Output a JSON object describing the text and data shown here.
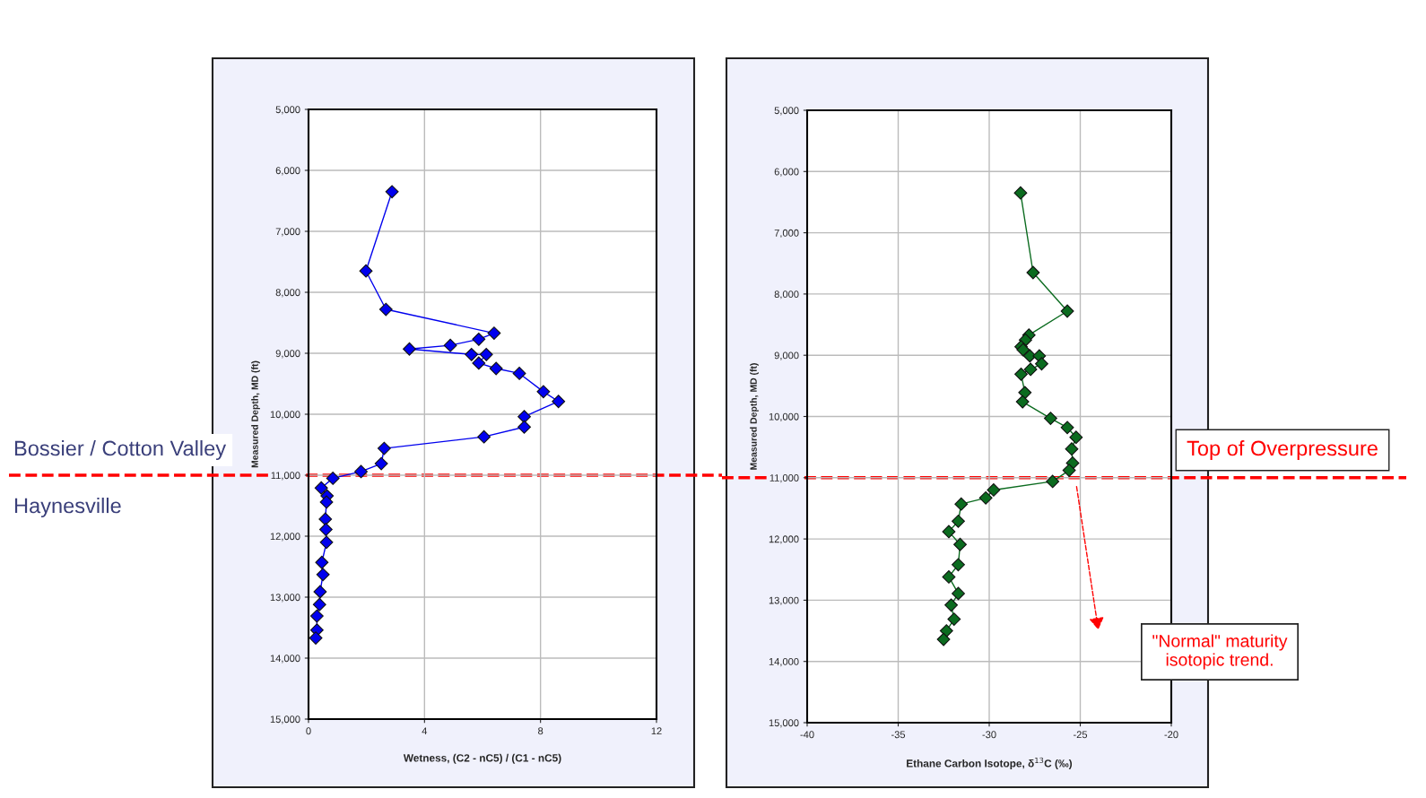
{
  "chart_data": [
    {
      "type": "line",
      "xlabel": "Wetness, (C2 - nC5) / (C1 - nC5)",
      "ylabel": "Measured Depth, MD (ft)",
      "xlim": [
        0,
        12
      ],
      "xticks": [
        0,
        4,
        8,
        12
      ],
      "ylim": [
        15000,
        5000
      ],
      "yticks": [
        {
          "value": 5000,
          "label": "5,000"
        },
        {
          "value": 6000,
          "label": "6,000"
        },
        {
          "value": 7000,
          "label": "7,000"
        },
        {
          "value": 8000,
          "label": "8,000"
        },
        {
          "value": 9000,
          "label": "9,000"
        },
        {
          "value": 10000,
          "label": "10,000"
        },
        {
          "value": 11000,
          "label": "11,000"
        },
        {
          "value": 12000,
          "label": "12,000"
        },
        {
          "value": 13000,
          "label": "13,000"
        },
        {
          "value": 14000,
          "label": "14,000"
        },
        {
          "value": 15000,
          "label": "15,000"
        }
      ],
      "grid": true,
      "marker": "diamond",
      "line_style": "solid",
      "series": [
        {
          "color": "#0000ee",
          "x": [
            2.88,
            1.98,
            2.67,
            6.4,
            5.87,
            4.89,
            3.48,
            5.62,
            6.13,
            5.87,
            6.47,
            7.27,
            8.1,
            8.62,
            7.44,
            7.44,
            6.05,
            2.61,
            2.51,
            1.81,
            0.84,
            0.44,
            0.64,
            0.62,
            0.58,
            0.6,
            0.62,
            0.46,
            0.5,
            0.4,
            0.38,
            0.29,
            0.29,
            0.25
          ],
          "values": [
            6350,
            7650,
            8280,
            8670,
            8770,
            8870,
            8930,
            9020,
            9020,
            9160,
            9250,
            9330,
            9630,
            9790,
            10040,
            10210,
            10370,
            10560,
            10810,
            10940,
            11050,
            11210,
            11340,
            11440,
            11720,
            11890,
            12100,
            12430,
            12630,
            12910,
            13120,
            13310,
            13540,
            13670
          ]
        }
      ],
      "ref_lines": [
        {
          "axis": "y",
          "value": 11000,
          "color": "#ff0000",
          "line_style": "dashed"
        }
      ],
      "annotations": [
        "Bossier / Cotton Valley",
        "Haynesville"
      ]
    },
    {
      "type": "line",
      "xlabel": "Ethane Carbon Isotope, δ$^{13}$C (‰)",
      "ylabel": "Measured Depth, MD (ft)",
      "xlim": [
        -40,
        -20
      ],
      "xticks": [
        -40,
        -35,
        -30,
        -25,
        -20
      ],
      "ylim": [
        15000,
        5000
      ],
      "yticks": [
        {
          "value": 5000,
          "label": "5,000"
        },
        {
          "value": 6000,
          "label": "6,000"
        },
        {
          "value": 7000,
          "label": "7,000"
        },
        {
          "value": 8000,
          "label": "8,000"
        },
        {
          "value": 9000,
          "label": "9,000"
        },
        {
          "value": 10000,
          "label": "10,000"
        },
        {
          "value": 11000,
          "label": "11,000"
        },
        {
          "value": 12000,
          "label": "12,000"
        },
        {
          "value": 13000,
          "label": "13,000"
        },
        {
          "value": 14000,
          "label": "14,000"
        },
        {
          "value": 15000,
          "label": "15,000"
        }
      ],
      "grid": true,
      "marker": "diamond",
      "line_style": "solid",
      "series": [
        {
          "color": "#0b6b1f",
          "x": [
            -28.28,
            -27.59,
            -25.71,
            -27.82,
            -28.01,
            -28.25,
            -28.14,
            -27.77,
            -27.25,
            -27.12,
            -27.73,
            -28.25,
            -28.04,
            -28.17,
            -26.63,
            -25.71,
            -25.23,
            -25.47,
            -25.42,
            -25.61,
            -26.52,
            -29.76,
            -30.19,
            -31.54,
            -31.7,
            -32.22,
            -31.6,
            -31.7,
            -32.22,
            -31.7,
            -32.09,
            -31.93,
            -32.35,
            -32.51
          ],
          "values": [
            6350,
            7650,
            8280,
            8670,
            8750,
            8860,
            8910,
            9010,
            9010,
            9140,
            9230,
            9310,
            9610,
            9760,
            10030,
            10180,
            10340,
            10530,
            10760,
            10880,
            11060,
            11200,
            11330,
            11430,
            11710,
            11880,
            12090,
            12420,
            12620,
            12890,
            13080,
            13310,
            13500,
            13640
          ]
        }
      ],
      "ref_lines": [
        {
          "axis": "y",
          "value": 11000,
          "label": "Top of Overpressure",
          "color": "#ff0000",
          "line_style": "dashed"
        }
      ],
      "annotations": [
        "\"Normal\" maturity\nisotopic trend."
      ]
    }
  ]
}
